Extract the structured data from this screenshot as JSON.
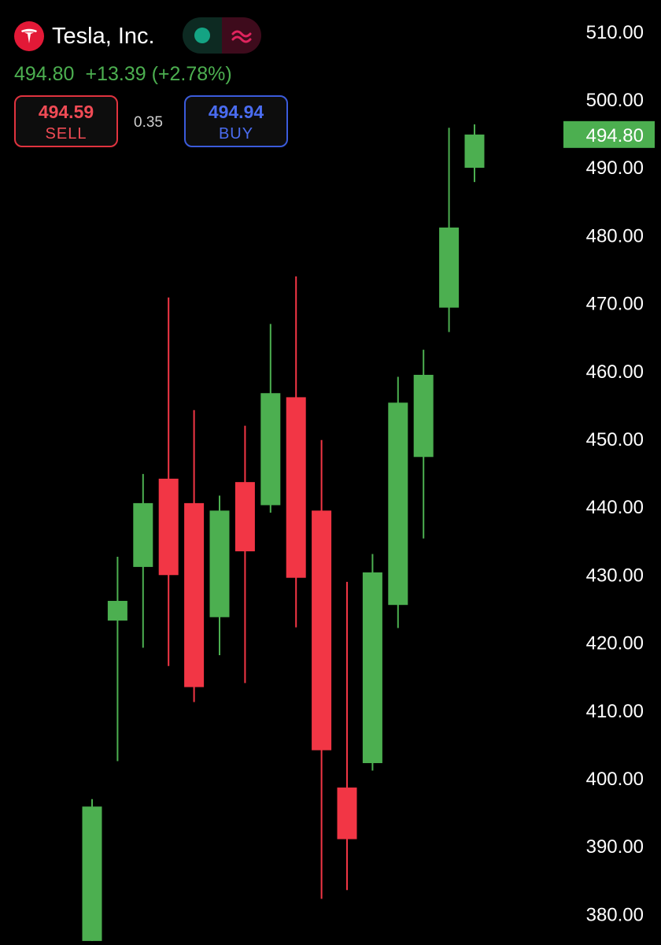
{
  "header": {
    "company_name": "Tesla, Inc.",
    "logo_icon": "tesla-logo-icon",
    "status_icons": [
      "market-open-dot-icon",
      "wave-icon"
    ],
    "last_price": "494.80",
    "change": "+13.39 (+2.78%)",
    "sell_price": "494.59",
    "sell_label": "SELL",
    "spread": "0.35",
    "buy_price": "494.94",
    "buy_label": "BUY"
  },
  "colors": {
    "up": "#4caf50",
    "down": "#f23645",
    "background": "#000000",
    "sell": "#f04b55",
    "buy": "#4a6cf0"
  },
  "chart_data": {
    "type": "candlestick",
    "y_axis_side": "right",
    "ylim": [
      378,
      514
    ],
    "y_ticks": [
      "510.00",
      "500.00",
      "490.00",
      "480.00",
      "470.00",
      "460.00",
      "450.00",
      "440.00",
      "430.00",
      "420.00",
      "410.00",
      "400.00",
      "390.00",
      "380.00"
    ],
    "last_price_label": "494.80",
    "candles": [
      {
        "open": 376.0,
        "high": 396.9,
        "low": 376.0,
        "close": 395.8
      },
      {
        "open": 423.2,
        "high": 432.6,
        "low": 402.5,
        "close": 426.1
      },
      {
        "open": 431.1,
        "high": 444.8,
        "low": 419.2,
        "close": 440.5
      },
      {
        "open": 444.1,
        "high": 470.8,
        "low": 416.5,
        "close": 429.9
      },
      {
        "open": 440.5,
        "high": 454.2,
        "low": 411.2,
        "close": 413.4
      },
      {
        "open": 423.7,
        "high": 441.6,
        "low": 418.1,
        "close": 439.4
      },
      {
        "open": 443.6,
        "high": 451.9,
        "low": 414.0,
        "close": 433.4
      },
      {
        "open": 440.2,
        "high": 466.9,
        "low": 439.1,
        "close": 456.7
      },
      {
        "open": 456.1,
        "high": 473.9,
        "low": 422.2,
        "close": 429.5
      },
      {
        "open": 439.4,
        "high": 449.8,
        "low": 382.2,
        "close": 404.1
      },
      {
        "open": 398.6,
        "high": 428.9,
        "low": 383.5,
        "close": 391.0
      },
      {
        "open": 402.2,
        "high": 433.0,
        "low": 401.1,
        "close": 430.3
      },
      {
        "open": 425.5,
        "high": 459.1,
        "low": 422.1,
        "close": 455.3
      },
      {
        "open": 447.3,
        "high": 463.1,
        "low": 435.3,
        "close": 459.4
      },
      {
        "open": 469.3,
        "high": 495.8,
        "low": 465.7,
        "close": 481.1
      },
      {
        "open": 489.9,
        "high": 496.3,
        "low": 487.8,
        "close": 494.8
      }
    ]
  }
}
